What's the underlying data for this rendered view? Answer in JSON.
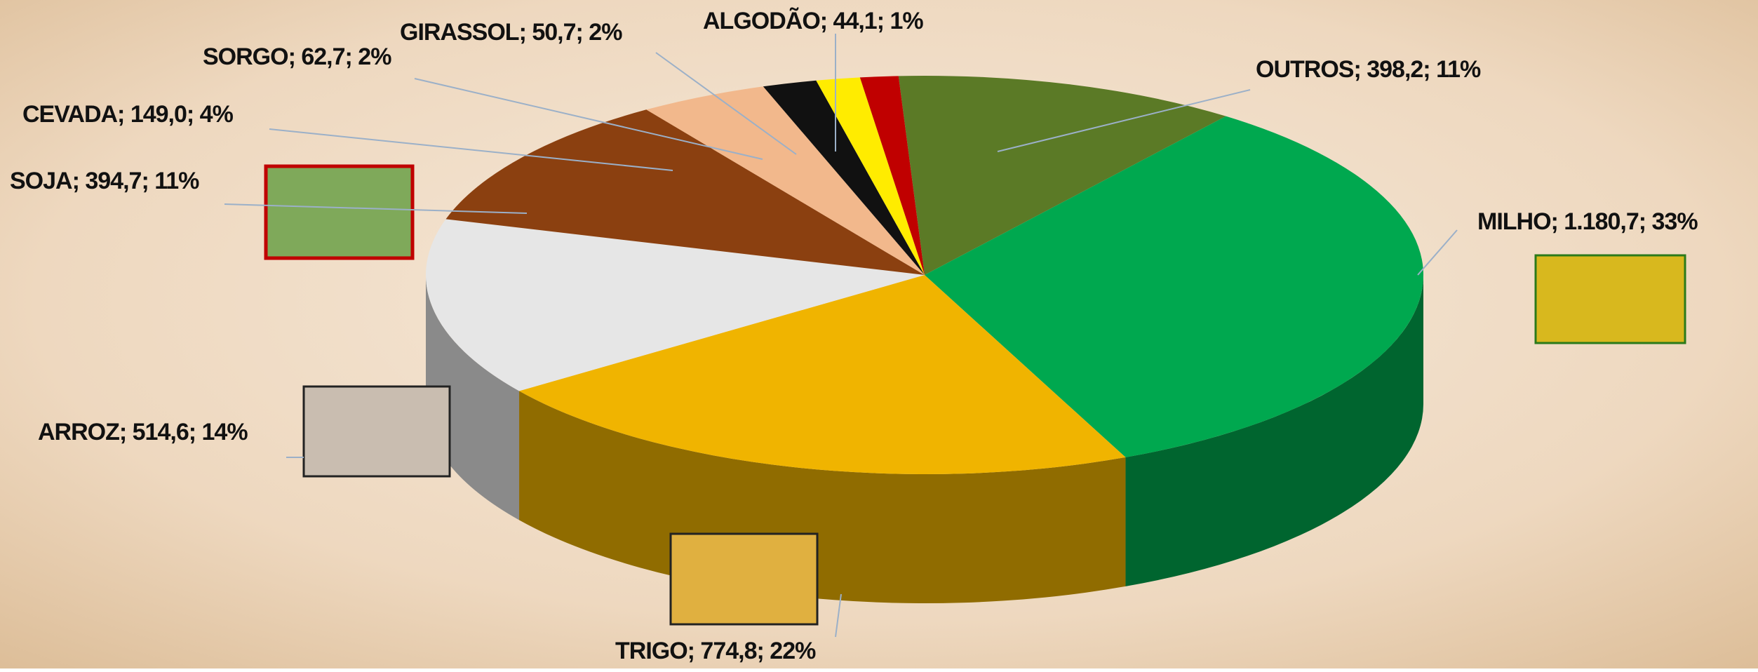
{
  "chart_data": {
    "type": "pie3d",
    "value_labels": [
      "OUTROS; 398,2; 11%",
      "MILHO; 1.180,7; 33%",
      "TRIGO; 774,8; 22%",
      "ARROZ; 514,6; 14%",
      "SOJA; 394,7; 11%",
      "CEVADA; 149,0; 4%",
      "SORGO; 62,7; 2%",
      "GIRASSOL; 50,7; 2%",
      "ALGODÃO; 44,1; 1%"
    ],
    "values": [
      398.2,
      1180.7,
      774.8,
      514.6,
      394.7,
      149.0,
      62.7,
      50.7,
      44.1
    ],
    "colors": [
      "#5b7a26",
      "#00a84f",
      "#f0b400",
      "#e6e6e6",
      "#8b4010",
      "#f2b88c",
      "#111111",
      "#ffec00",
      "#c00000"
    ]
  }
}
